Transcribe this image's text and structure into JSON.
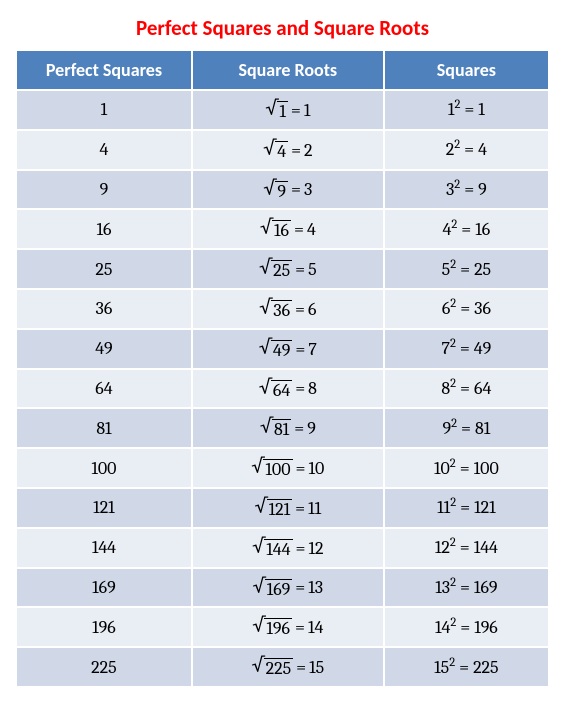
{
  "title": {
    "text": "Perfect Squares and Square Roots",
    "color": "#ff0000",
    "fontsize": 21
  },
  "table": {
    "header_bg": "#4f81bd",
    "header_color": "#ffffff",
    "header_fontsize": 18,
    "row_odd_bg": "#d0d8e8",
    "row_even_bg": "#e9edf4",
    "cell_fontsize": 18,
    "columns": [
      "Perfect Squares",
      "Square Roots",
      "Squares"
    ],
    "rows": [
      {
        "square": "1",
        "radicand": "1",
        "root": "1",
        "base": "1"
      },
      {
        "square": "4",
        "radicand": "4",
        "root": "2",
        "base": "2"
      },
      {
        "square": "9",
        "radicand": "9",
        "root": "3",
        "base": "3"
      },
      {
        "square": "16",
        "radicand": "16",
        "root": "4",
        "base": "4"
      },
      {
        "square": "25",
        "radicand": "25",
        "root": "5",
        "base": "5"
      },
      {
        "square": "36",
        "radicand": "36",
        "root": "6",
        "base": "6"
      },
      {
        "square": "49",
        "radicand": "49",
        "root": "7",
        "base": "7"
      },
      {
        "square": "64",
        "radicand": "64",
        "root": "8",
        "base": "8"
      },
      {
        "square": "81",
        "radicand": "81",
        "root": "9",
        "base": "9"
      },
      {
        "square": "100",
        "radicand": "100",
        "root": "10",
        "base": "10"
      },
      {
        "square": "121",
        "radicand": "121",
        "root": "11",
        "base": "11"
      },
      {
        "square": "144",
        "radicand": "144",
        "root": "12",
        "base": "12"
      },
      {
        "square": "169",
        "radicand": "169",
        "root": "13",
        "base": "13"
      },
      {
        "square": "196",
        "radicand": "196",
        "root": "14",
        "base": "14"
      },
      {
        "square": "225",
        "radicand": "225",
        "root": "15",
        "base": "15"
      }
    ]
  }
}
